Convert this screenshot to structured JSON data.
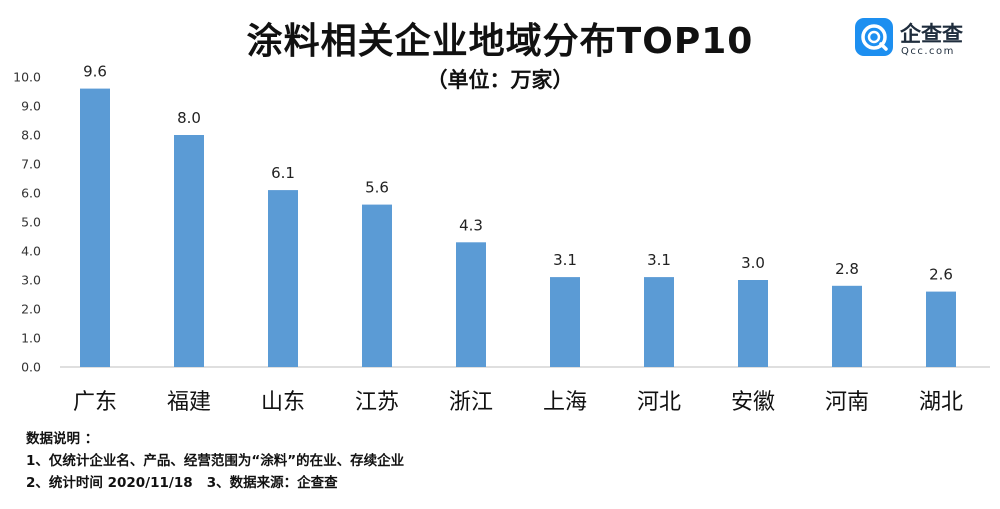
{
  "title": "涂料相关企业地域分布TOP10",
  "subtitle": "（单位：万家）",
  "logo": {
    "name": "企查查",
    "sub": "Qcc.com",
    "brand_color": "#1d8ff0",
    "icon": "qcc-logo-icon"
  },
  "notes": {
    "heading": "数据说明 ：",
    "line1": "1、仅统计企业名、产品、经营范围为“涂料”的在业、存续企业",
    "line2": "2、统计时间 2020/11/18   3、数据来源：企查查"
  },
  "chart_data": {
    "type": "bar",
    "title": "涂料相关企业地域分布TOP10",
    "subtitle": "（单位：万家）",
    "categories": [
      "广东",
      "福建",
      "山东",
      "江苏",
      "浙江",
      "上海",
      "河北",
      "安徽",
      "河南",
      "湖北"
    ],
    "values": [
      9.6,
      8.0,
      6.1,
      5.6,
      4.3,
      3.1,
      3.1,
      3.0,
      2.8,
      2.6
    ],
    "data_labels": [
      "9.6",
      "8.0",
      "6.1",
      "5.6",
      "4.3",
      "3.1",
      "3.1",
      "3.0",
      "2.8",
      "2.6"
    ],
    "yticks": [
      "0.0",
      "1.0",
      "2.0",
      "3.0",
      "4.0",
      "5.0",
      "6.0",
      "7.0",
      "8.0",
      "9.0",
      "10.0"
    ],
    "ylim": [
      0,
      10
    ],
    "grid": false,
    "legend": "none",
    "bar_color": "#5b9bd5"
  }
}
